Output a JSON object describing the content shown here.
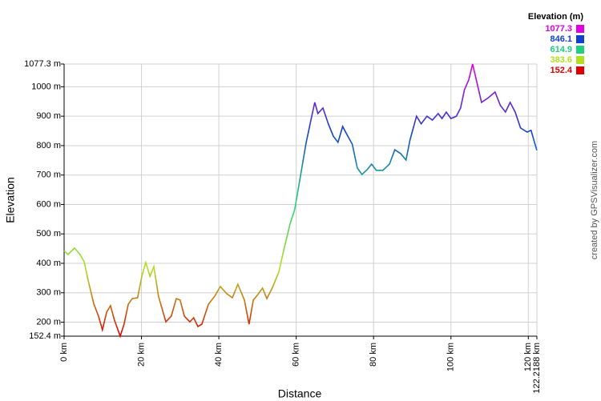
{
  "chart_data": {
    "type": "line",
    "x_label": "Distance",
    "y_label": "Elevation",
    "credit": "created by GPSVisualizer.com",
    "grid": true,
    "legend": {
      "title": "Elevation (m)",
      "position": "top-right",
      "items": [
        {
          "value": 1077.3,
          "color": "#e000e0"
        },
        {
          "value": 846.1,
          "color": "#1040d0"
        },
        {
          "value": 614.9,
          "color": "#20d080"
        },
        {
          "value": 383.6,
          "color": "#b0e020"
        },
        {
          "value": 152.4,
          "color": "#e00000"
        }
      ]
    },
    "xlim": [
      0,
      122.2188
    ],
    "ylim": [
      152.4,
      1077.3
    ],
    "xticks": [
      {
        "value": 0,
        "label": "0 km"
      },
      {
        "value": 20,
        "label": "20 km"
      },
      {
        "value": 40,
        "label": "40 km"
      },
      {
        "value": 60,
        "label": "60 km"
      },
      {
        "value": 80,
        "label": "80 km"
      },
      {
        "value": 100,
        "label": "100 km"
      },
      {
        "value": 120,
        "label": "120 km"
      },
      {
        "value": 122.2188,
        "label": "122.2188 km"
      }
    ],
    "yticks": [
      {
        "value": 152.4,
        "label": "152.4 m"
      },
      {
        "value": 200,
        "label": "200 m"
      },
      {
        "value": 300,
        "label": "300 m"
      },
      {
        "value": 400,
        "label": "400 m"
      },
      {
        "value": 500,
        "label": "500 m"
      },
      {
        "value": 600,
        "label": "600 m"
      },
      {
        "value": 700,
        "label": "700 m"
      },
      {
        "value": 800,
        "label": "800 m"
      },
      {
        "value": 900,
        "label": "900 m"
      },
      {
        "value": 1000,
        "label": "1000 m"
      },
      {
        "value": 1077.3,
        "label": "1077.3 m"
      }
    ],
    "x": [
      0,
      1.0,
      2.7,
      4.1,
      5.2,
      6.2,
      7.7,
      8.9,
      9.9,
      11.0,
      12.0,
      13.0,
      14.5,
      15.5,
      16.6,
      17.6,
      19.0,
      20.1,
      21.1,
      22.2,
      23.2,
      24.4,
      26.3,
      27.7,
      29.0,
      30.0,
      31.1,
      32.5,
      33.5,
      34.6,
      35.6,
      37.3,
      38.9,
      40.4,
      42.0,
      43.5,
      44.9,
      46.6,
      47.8,
      48.9,
      50.1,
      51.3,
      52.4,
      53.8,
      55.5,
      56.9,
      58.4,
      59.6,
      61.1,
      62.5,
      63.8,
      64.8,
      65.6,
      66.9,
      68.3,
      69.6,
      70.8,
      72.0,
      73.1,
      74.5,
      75.8,
      77.0,
      78.3,
      79.5,
      80.7,
      82.4,
      84.1,
      85.5,
      87.0,
      88.4,
      89.4,
      91.1,
      92.3,
      93.8,
      95.2,
      96.7,
      97.7,
      98.8,
      100.0,
      101.4,
      102.5,
      103.5,
      104.6,
      105.6,
      106.8,
      107.9,
      109.7,
      111.4,
      112.8,
      114.1,
      115.3,
      116.6,
      118.0,
      119.7,
      120.7,
      122.2
    ],
    "values": [
      443,
      430,
      452,
      430,
      405,
      343,
      261,
      220,
      174,
      234,
      256,
      207,
      152.4,
      193,
      261,
      280,
      283,
      356,
      403,
      356,
      389,
      288,
      201,
      220,
      280,
      275,
      220,
      201,
      215,
      185,
      193,
      261,
      288,
      321,
      297,
      283,
      329,
      275,
      193,
      275,
      294,
      316,
      280,
      316,
      370,
      452,
      533,
      582,
      697,
      805,
      887,
      947,
      909,
      928,
      874,
      832,
      811,
      865,
      838,
      805,
      724,
      702,
      718,
      737,
      716,
      716,
      737,
      786,
      773,
      751,
      819,
      900,
      874,
      900,
      887,
      909,
      892,
      914,
      892,
      900,
      928,
      990,
      1023,
      1077.3,
      1009,
      947,
      963,
      982,
      936,
      914,
      947,
      914,
      860,
      846,
      852,
      784
    ]
  }
}
